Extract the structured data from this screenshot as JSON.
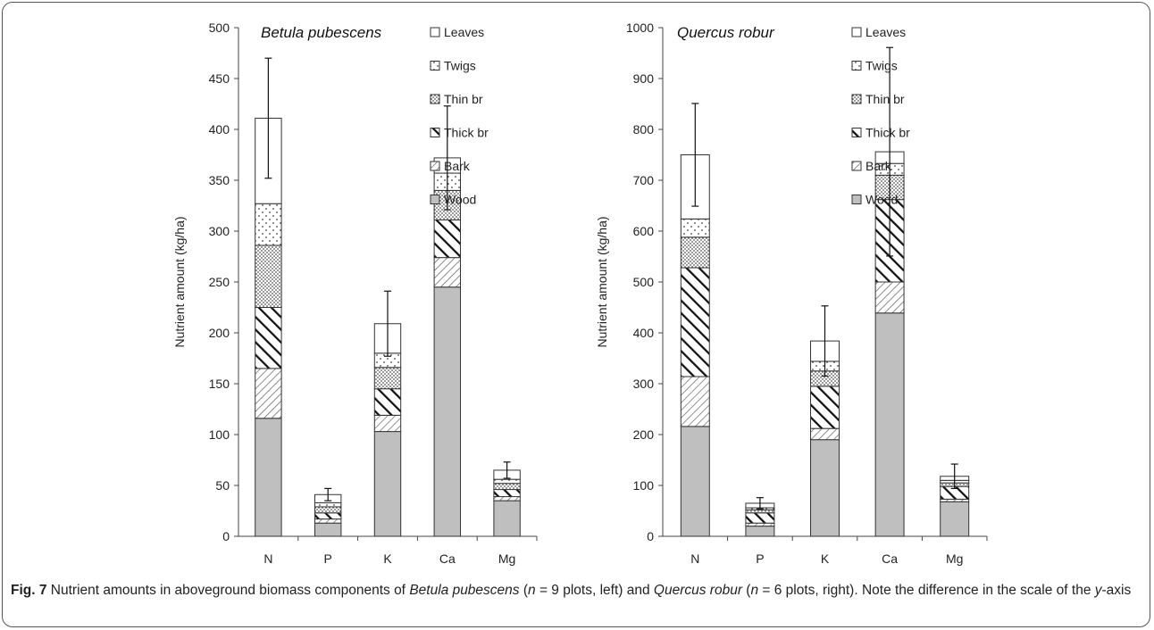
{
  "components": [
    "Wood",
    "Bark",
    "Thick br",
    "Thin br",
    "Twigs",
    "Leaves"
  ],
  "legend_order": [
    "Leaves",
    "Twigs",
    "Thin br",
    "Thick br",
    "Bark",
    "Wood"
  ],
  "styles": {
    "Wood": {
      "fill": "#bfbfbf",
      "pattern": "none"
    },
    "Bark": {
      "fill": "#ffffff",
      "pattern": "diag-fine"
    },
    "Thick br": {
      "fill": "#ffffff",
      "pattern": "diag-bold"
    },
    "Thin br": {
      "fill": "#ffffff",
      "pattern": "dots-dense"
    },
    "Twigs": {
      "fill": "#ffffff",
      "pattern": "dots-sparse"
    },
    "Leaves": {
      "fill": "#ffffff",
      "pattern": "none"
    }
  },
  "chart_data": [
    {
      "type": "bar",
      "stacked": true,
      "title": "Betula pubescens",
      "ylabel": "Nutrient amount (kg/ha)",
      "xlabel": "",
      "categories": [
        "N",
        "P",
        "K",
        "Ca",
        "Mg"
      ],
      "ylim": [
        0,
        500
      ],
      "yticks": [
        0,
        50,
        100,
        150,
        200,
        250,
        300,
        350,
        400,
        450,
        500
      ],
      "legend_position": "top-right",
      "series": [
        {
          "name": "Wood",
          "values": [
            116,
            13,
            103,
            245,
            35
          ]
        },
        {
          "name": "Bark",
          "values": [
            49,
            4,
            16,
            29,
            4
          ]
        },
        {
          "name": "Thick br",
          "values": [
            60,
            6,
            26,
            37,
            7
          ]
        },
        {
          "name": "Thin br",
          "values": [
            61,
            6,
            21,
            29,
            6
          ]
        },
        {
          "name": "Twigs",
          "values": [
            41,
            4,
            14,
            17,
            4
          ]
        },
        {
          "name": "Leaves",
          "values": [
            84,
            8,
            29,
            15,
            9
          ]
        }
      ],
      "error_bars": [
        59,
        6,
        32,
        51,
        8
      ]
    },
    {
      "type": "bar",
      "stacked": true,
      "title": "Quercus robur",
      "ylabel": "Nutrient amount (kg/ha)",
      "xlabel": "",
      "categories": [
        "N",
        "P",
        "K",
        "Ca",
        "Mg"
      ],
      "ylim": [
        0,
        1000
      ],
      "yticks": [
        0,
        100,
        200,
        300,
        400,
        500,
        600,
        700,
        800,
        900,
        1000
      ],
      "legend_position": "top-right",
      "series": [
        {
          "name": "Wood",
          "values": [
            216,
            20,
            190,
            439,
            68
          ]
        },
        {
          "name": "Bark",
          "values": [
            98,
            6,
            22,
            61,
            5
          ]
        },
        {
          "name": "Thick br",
          "values": [
            214,
            20,
            83,
            162,
            25
          ]
        },
        {
          "name": "Thin br",
          "values": [
            60,
            6,
            30,
            48,
            7
          ]
        },
        {
          "name": "Twigs",
          "values": [
            36,
            4,
            19,
            23,
            5
          ]
        },
        {
          "name": "Leaves",
          "values": [
            126,
            9,
            40,
            23,
            8
          ]
        }
      ],
      "error_bars": [
        101,
        11,
        69,
        205,
        24
      ]
    }
  ],
  "caption": {
    "label": "Fig. 7",
    "parts": [
      {
        "text": " Nutrient amounts in aboveground biomass components of ",
        "italic": false
      },
      {
        "text": "Betula pubescens",
        "italic": true
      },
      {
        "text": " (",
        "italic": false
      },
      {
        "text": "n",
        "italic": true
      },
      {
        "text": " = 9 plots, left) and ",
        "italic": false
      },
      {
        "text": "Quercus robur",
        "italic": true
      },
      {
        "text": " (",
        "italic": false
      },
      {
        "text": "n",
        "italic": true
      },
      {
        "text": " = 6 plots, right). Note the difference in the scale of the ",
        "italic": false
      },
      {
        "text": "y",
        "italic": true
      },
      {
        "text": "-axis",
        "italic": false
      }
    ]
  }
}
